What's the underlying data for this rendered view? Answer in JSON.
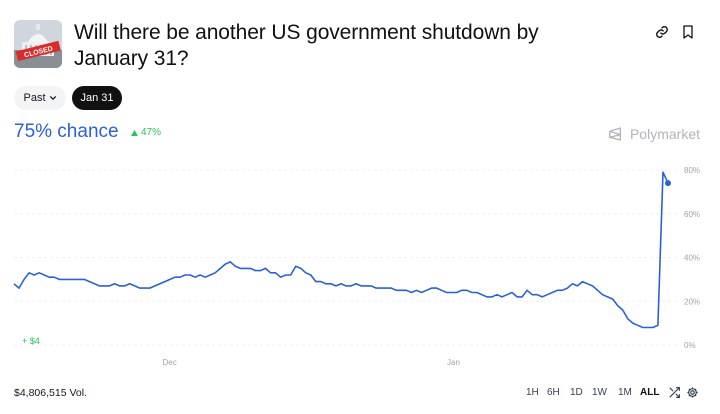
{
  "market": {
    "title": "Will there be another US government shutdown by January 31?",
    "thumbnail_icon": "capitol-closed-image"
  },
  "actions": {
    "link_icon": "link-icon",
    "bookmark_icon": "bookmark-icon"
  },
  "filters": {
    "past_label": "Past",
    "date_label": "Jan 31"
  },
  "probability": {
    "chance": "75% chance",
    "delta": "47%"
  },
  "brand": {
    "name": "Polymarket"
  },
  "chart_data": {
    "type": "line",
    "series": [
      {
        "values": [
          28,
          26,
          30,
          33,
          32,
          33,
          32,
          31,
          31,
          30,
          30,
          30,
          30,
          30,
          30,
          29,
          28,
          27,
          27,
          27,
          28,
          27,
          27,
          28,
          27,
          26,
          26,
          26,
          27,
          28,
          29,
          30,
          31,
          31,
          32,
          32,
          31,
          32,
          31,
          32,
          33,
          35,
          37,
          38,
          36,
          35,
          35,
          35,
          34,
          34,
          35,
          33,
          33,
          31,
          32,
          32,
          36,
          35,
          33,
          32,
          29,
          29,
          28,
          28,
          27,
          28,
          27,
          27,
          28,
          27,
          27,
          27,
          26,
          26,
          26,
          26,
          25,
          25,
          25,
          24,
          25,
          24,
          25,
          26,
          26,
          25,
          24,
          24,
          24,
          25,
          25,
          24,
          24,
          23,
          22,
          22,
          23,
          22,
          23,
          24,
          22,
          22,
          25,
          23,
          23,
          22,
          23,
          24,
          25,
          25,
          26,
          28,
          27,
          29,
          28,
          27,
          25,
          23,
          22,
          21,
          18,
          16,
          12,
          10,
          9,
          8,
          8,
          8,
          9,
          79,
          74
        ],
        "color": "#2c61d6"
      }
    ],
    "yticks": [
      "80%",
      "60%",
      "40%",
      "20%",
      "0%"
    ],
    "ylim": [
      0,
      80
    ],
    "xticks": [
      {
        "label": "Dec",
        "at": 0.238
      },
      {
        "label": "Jan",
        "at": 0.672
      }
    ],
    "annotation": "+ $4"
  },
  "footer": {
    "volume": "$4,806,515 Vol.",
    "timeframes": [
      "1H",
      "6H",
      "1D",
      "1W",
      "1M",
      "ALL"
    ],
    "active_timeframe": "ALL",
    "shuffle_icon": "shuffle-icon",
    "settings_icon": "settings-icon"
  }
}
